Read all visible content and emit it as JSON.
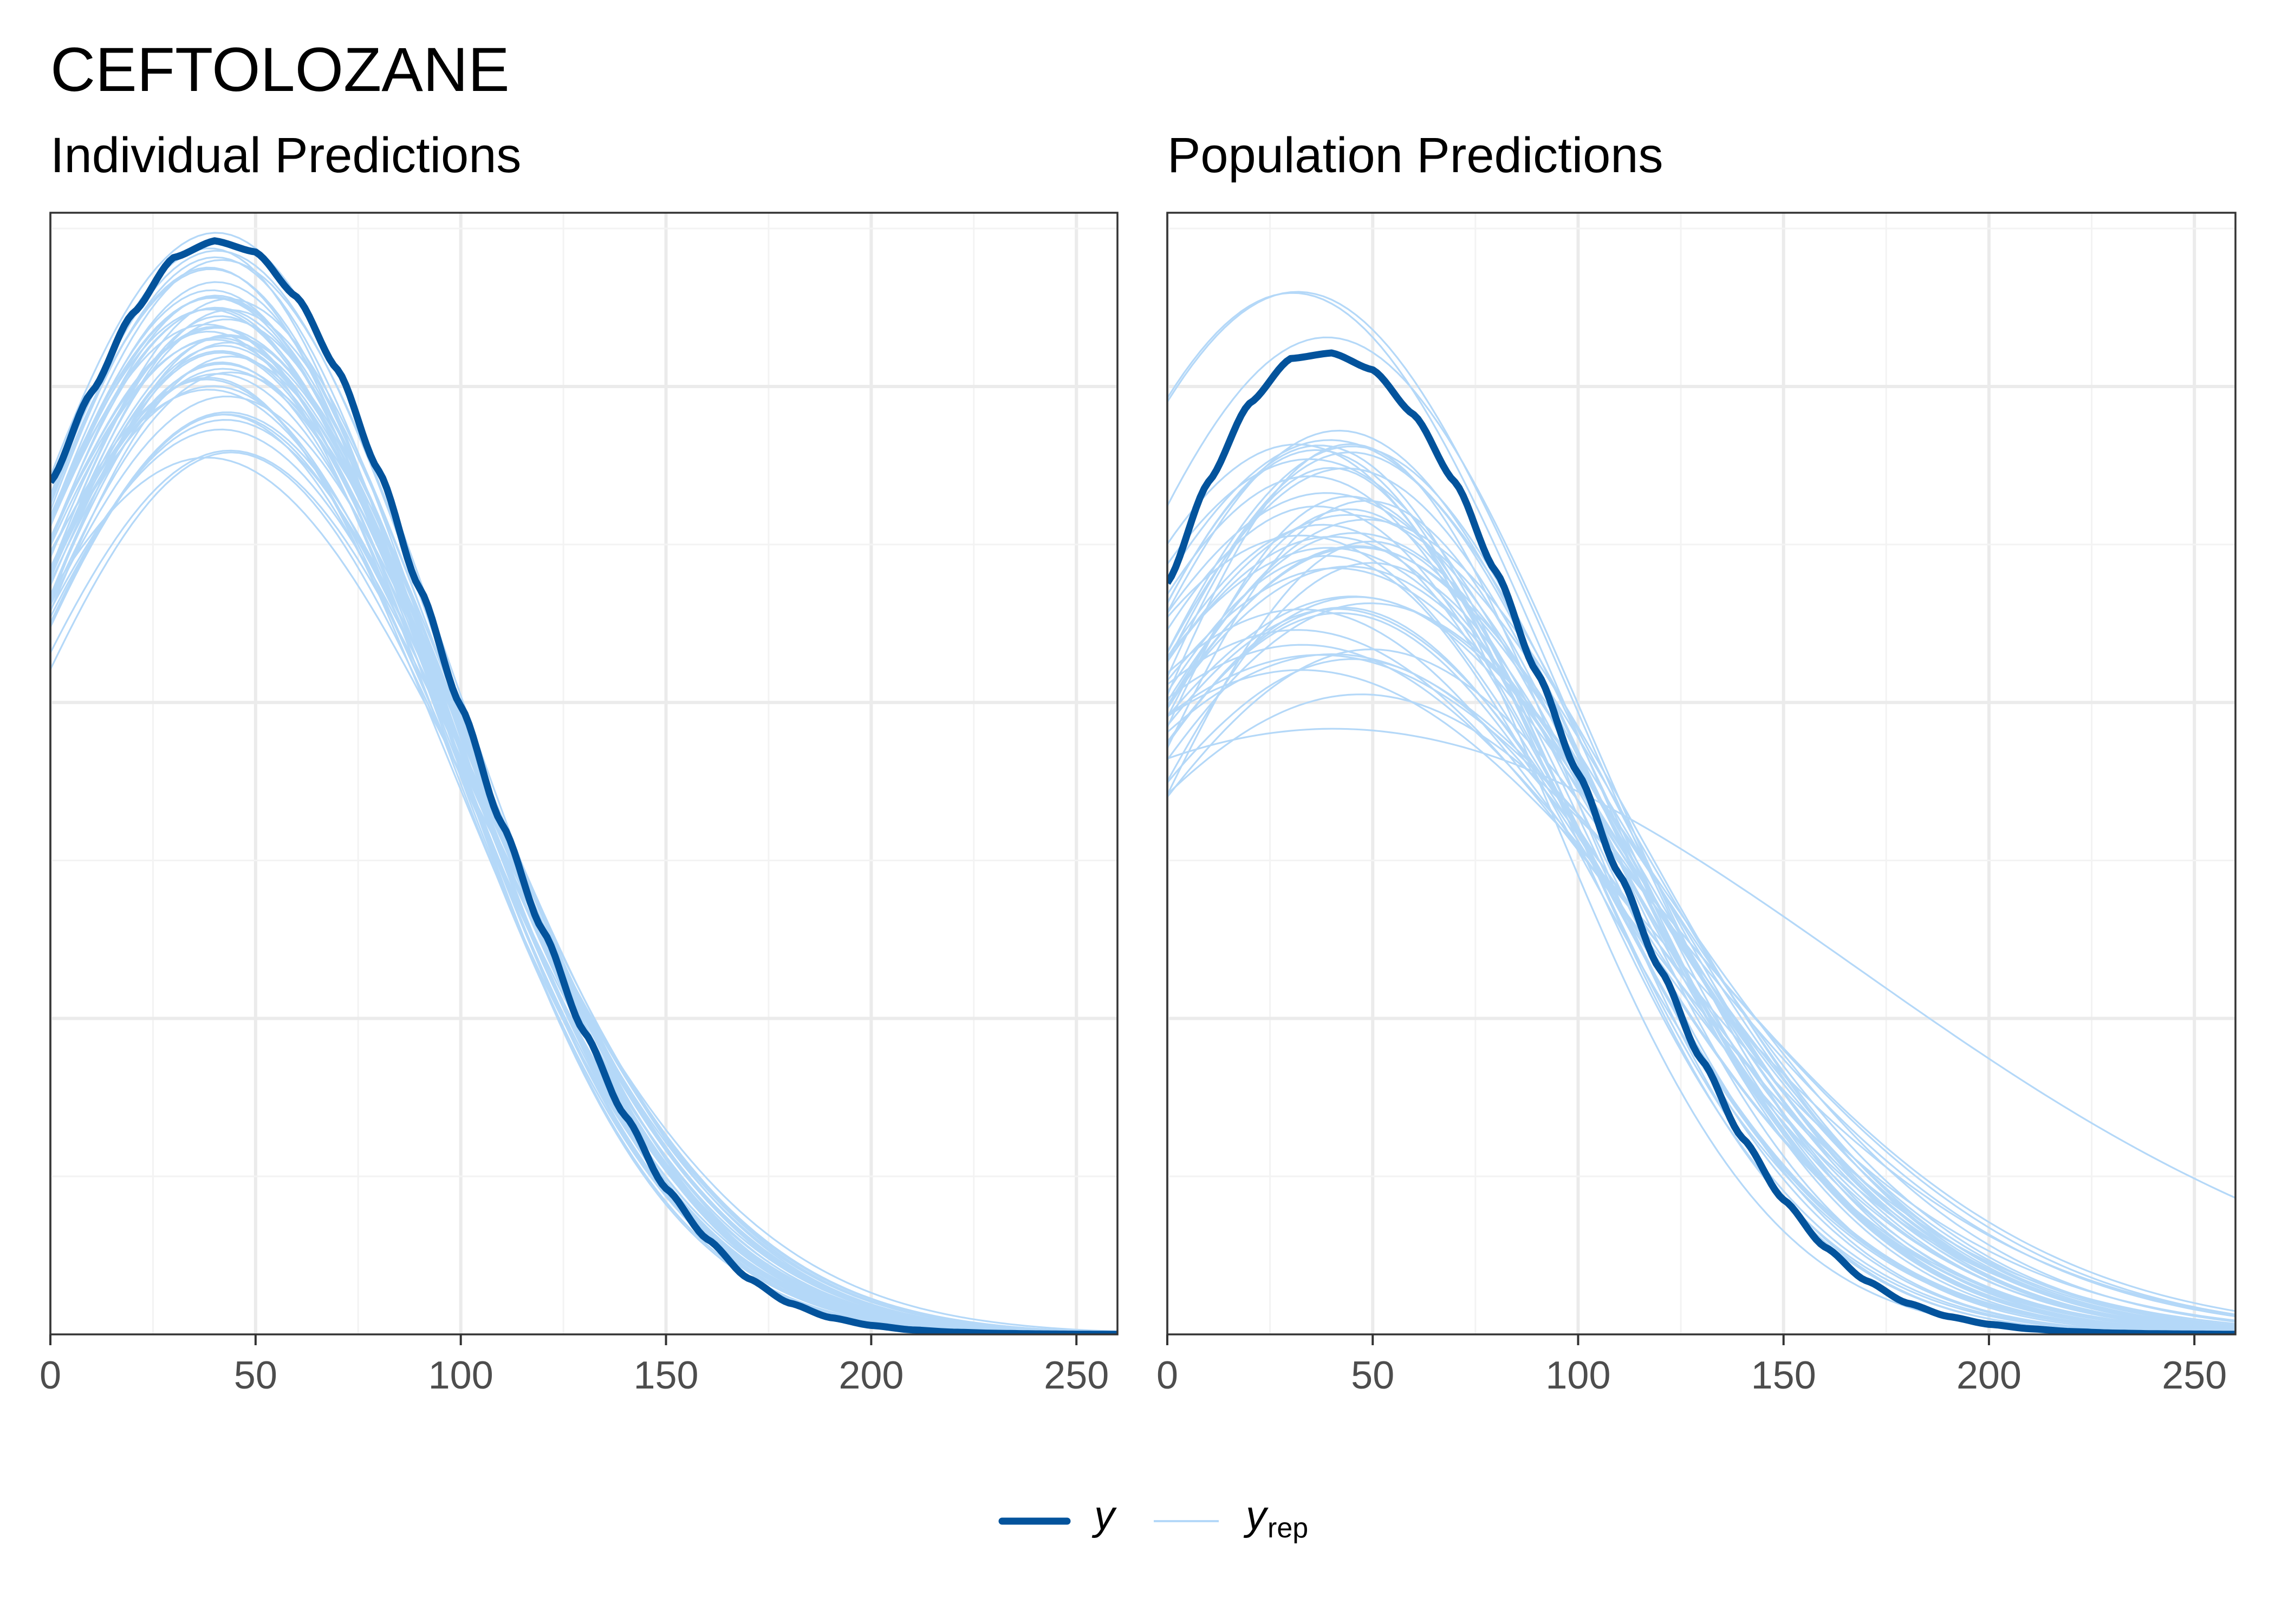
{
  "figure": {
    "title": "CEFTOLOZANE",
    "legend": {
      "y_label": "y",
      "yrep_main": "y",
      "yrep_sub": "rep"
    }
  },
  "colors": {
    "y": "#03539c",
    "yrep": "#b4d8f8",
    "grid_major": "#ebebeb",
    "grid_minor": "#f3f3f3",
    "panel_border": "#333333",
    "tick_text": "#4d4d4d"
  },
  "chart_data": [
    {
      "type": "line",
      "title": "Individual Predictions",
      "xlabel": "",
      "ylabel": "",
      "xlim": [
        0,
        260
      ],
      "ylim": [
        0,
        1.0
      ],
      "x_ticks": [
        0,
        50,
        100,
        150,
        200,
        250
      ],
      "x_tick_labels": [
        "0",
        "50",
        "100",
        "150",
        "200",
        "250"
      ],
      "y_tick_labels_shown": false,
      "grid": true,
      "legend_position": "bottom",
      "series": [
        {
          "name": "y",
          "role": "observed",
          "points": [
            [
              0,
              0.76
            ],
            [
              10,
              0.84
            ],
            [
              20,
              0.91
            ],
            [
              30,
              0.96
            ],
            [
              40,
              0.975
            ],
            [
              50,
              0.965
            ],
            [
              60,
              0.925
            ],
            [
              70,
              0.86
            ],
            [
              80,
              0.77
            ],
            [
              90,
              0.665
            ],
            [
              100,
              0.56
            ],
            [
              110,
              0.455
            ],
            [
              120,
              0.36
            ],
            [
              130,
              0.27
            ],
            [
              140,
              0.195
            ],
            [
              150,
              0.13
            ],
            [
              160,
              0.085
            ],
            [
              170,
              0.05
            ],
            [
              180,
              0.028
            ],
            [
              190,
              0.015
            ],
            [
              200,
              0.008
            ],
            [
              210,
              0.004
            ],
            [
              220,
              0.002
            ],
            [
              230,
              0.001
            ],
            [
              240,
              0.0005
            ],
            [
              250,
              0.0002
            ],
            [
              260,
              0.0001
            ]
          ]
        }
      ],
      "replicates": {
        "name": "y_rep",
        "count": 50,
        "peak_x_range": [
          38,
          44
        ],
        "peak_y_range": [
          0.76,
          1.0
        ],
        "peak_y_typical": [
          0.8,
          0.97
        ],
        "pivot": {
          "x": 100,
          "y": 0.565
        },
        "sd_right_range": [
          48,
          58
        ]
      }
    },
    {
      "type": "line",
      "title": "Population Predictions",
      "xlabel": "",
      "ylabel": "",
      "xlim": [
        0,
        260
      ],
      "ylim": [
        0,
        1.0
      ],
      "x_ticks": [
        0,
        50,
        100,
        150,
        200,
        250
      ],
      "x_tick_labels": [
        "0",
        "50",
        "100",
        "150",
        "200",
        "250"
      ],
      "y_tick_labels_shown": false,
      "grid": true,
      "legend_position": "bottom",
      "series": [
        {
          "name": "y",
          "role": "observed",
          "points": [
            [
              0,
              0.67
            ],
            [
              10,
              0.76
            ],
            [
              20,
              0.83
            ],
            [
              30,
              0.87
            ],
            [
              40,
              0.875
            ],
            [
              50,
              0.86
            ],
            [
              60,
              0.82
            ],
            [
              70,
              0.76
            ],
            [
              80,
              0.68
            ],
            [
              90,
              0.59
            ],
            [
              100,
              0.5
            ],
            [
              110,
              0.41
            ],
            [
              120,
              0.325
            ],
            [
              130,
              0.245
            ],
            [
              140,
              0.175
            ],
            [
              150,
              0.12
            ],
            [
              160,
              0.078
            ],
            [
              170,
              0.048
            ],
            [
              180,
              0.028
            ],
            [
              190,
              0.016
            ],
            [
              200,
              0.009
            ],
            [
              210,
              0.005
            ],
            [
              220,
              0.0025
            ],
            [
              230,
              0.0012
            ],
            [
              240,
              0.0006
            ],
            [
              250,
              0.0003
            ],
            [
              260,
              0.0001
            ]
          ]
        }
      ],
      "replicates": {
        "name": "y_rep",
        "count": 50,
        "peak_x_range": [
          30,
          50
        ],
        "peak_y_range": [
          0.51,
          1.0
        ],
        "peak_y_typical": [
          0.6,
          0.8
        ],
        "pivot": {
          "x": 95,
          "y": 0.52
        },
        "sd_right_range": [
          42,
          80
        ]
      }
    }
  ]
}
